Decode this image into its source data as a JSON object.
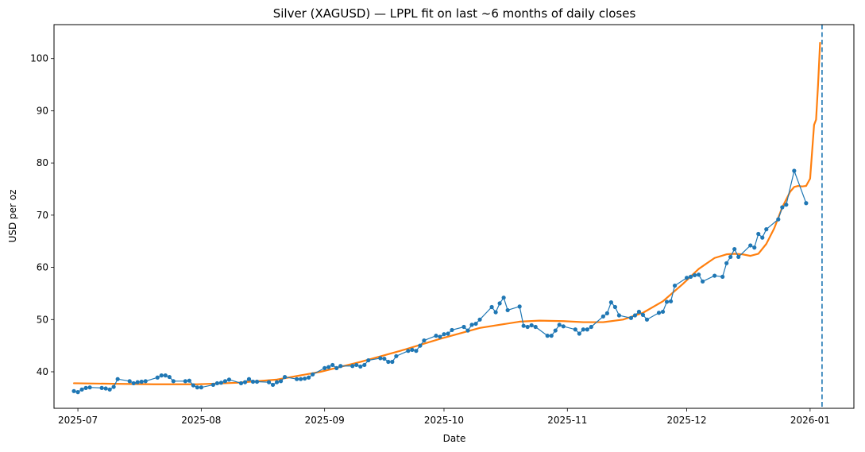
{
  "chart_data": {
    "type": "line",
    "title": "Silver (XAGUSD) — LPPL fit on last ~6 months of daily closes",
    "xlabel": "Date",
    "ylabel": "USD per oz",
    "xlim": [
      "2025-06-25",
      "2026-01-12"
    ],
    "ylim": [
      33,
      106.5
    ],
    "x_ticks": [
      "2025-07-01",
      "2025-08-01",
      "2025-09-01",
      "2025-10-01",
      "2025-11-01",
      "2025-12-01",
      "2026-01-01"
    ],
    "x_tick_labels": [
      "2025-07",
      "2025-08",
      "2025-09",
      "2025-10",
      "2025-11",
      "2025-12",
      "2026-01"
    ],
    "y_ticks": [
      40,
      50,
      60,
      70,
      80,
      90,
      100
    ],
    "y_tick_labels": [
      "40",
      "50",
      "60",
      "70",
      "80",
      "90",
      "100"
    ],
    "grid": false,
    "legend": "none",
    "critical_time": "2026-01-04",
    "series": [
      {
        "role": "daily closes",
        "style": "line-with-markers",
        "color": "#1f77b4",
        "points": [
          [
            "2025-06-30",
            36.3
          ],
          [
            "2025-07-01",
            36.1
          ],
          [
            "2025-07-02",
            36.6
          ],
          [
            "2025-07-03",
            36.9
          ],
          [
            "2025-07-04",
            37.0
          ],
          [
            "2025-07-07",
            36.9
          ],
          [
            "2025-07-08",
            36.8
          ],
          [
            "2025-07-09",
            36.6
          ],
          [
            "2025-07-10",
            37.1
          ],
          [
            "2025-07-11",
            38.6
          ],
          [
            "2025-07-14",
            38.2
          ],
          [
            "2025-07-15",
            37.8
          ],
          [
            "2025-07-16",
            38.0
          ],
          [
            "2025-07-17",
            38.1
          ],
          [
            "2025-07-18",
            38.2
          ],
          [
            "2025-07-21",
            38.9
          ],
          [
            "2025-07-22",
            39.3
          ],
          [
            "2025-07-23",
            39.3
          ],
          [
            "2025-07-24",
            39.0
          ],
          [
            "2025-07-25",
            38.2
          ],
          [
            "2025-07-28",
            38.2
          ],
          [
            "2025-07-29",
            38.3
          ],
          [
            "2025-07-30",
            37.4
          ],
          [
            "2025-07-31",
            37.0
          ],
          [
            "2025-08-01",
            37.0
          ],
          [
            "2025-08-04",
            37.5
          ],
          [
            "2025-08-05",
            37.8
          ],
          [
            "2025-08-06",
            37.9
          ],
          [
            "2025-08-07",
            38.2
          ],
          [
            "2025-08-08",
            38.5
          ],
          [
            "2025-08-11",
            37.8
          ],
          [
            "2025-08-12",
            38.0
          ],
          [
            "2025-08-13",
            38.6
          ],
          [
            "2025-08-14",
            38.1
          ],
          [
            "2025-08-15",
            38.1
          ],
          [
            "2025-08-18",
            38.0
          ],
          [
            "2025-08-19",
            37.5
          ],
          [
            "2025-08-20",
            38.0
          ],
          [
            "2025-08-21",
            38.2
          ],
          [
            "2025-08-22",
            39.0
          ],
          [
            "2025-08-25",
            38.6
          ],
          [
            "2025-08-26",
            38.6
          ],
          [
            "2025-08-27",
            38.7
          ],
          [
            "2025-08-28",
            38.9
          ],
          [
            "2025-08-29",
            39.5
          ],
          [
            "2025-09-01",
            40.7
          ],
          [
            "2025-09-02",
            40.9
          ],
          [
            "2025-09-03",
            41.3
          ],
          [
            "2025-09-04",
            40.7
          ],
          [
            "2025-09-05",
            41.1
          ],
          [
            "2025-09-08",
            41.1
          ],
          [
            "2025-09-09",
            41.3
          ],
          [
            "2025-09-10",
            41.0
          ],
          [
            "2025-09-11",
            41.3
          ],
          [
            "2025-09-12",
            42.2
          ],
          [
            "2025-09-15",
            42.6
          ],
          [
            "2025-09-16",
            42.5
          ],
          [
            "2025-09-17",
            41.9
          ],
          [
            "2025-09-18",
            41.9
          ],
          [
            "2025-09-19",
            43.0
          ],
          [
            "2025-09-22",
            44.0
          ],
          [
            "2025-09-23",
            44.2
          ],
          [
            "2025-09-24",
            44.0
          ],
          [
            "2025-09-25",
            45.0
          ],
          [
            "2025-09-26",
            46.0
          ],
          [
            "2025-09-29",
            46.9
          ],
          [
            "2025-09-30",
            46.7
          ],
          [
            "2025-10-01",
            47.2
          ],
          [
            "2025-10-02",
            47.3
          ],
          [
            "2025-10-03",
            48.0
          ],
          [
            "2025-10-06",
            48.6
          ],
          [
            "2025-10-07",
            47.9
          ],
          [
            "2025-10-08",
            49.0
          ],
          [
            "2025-10-09",
            49.2
          ],
          [
            "2025-10-10",
            50.0
          ],
          [
            "2025-10-13",
            52.4
          ],
          [
            "2025-10-14",
            51.4
          ],
          [
            "2025-10-15",
            53.1
          ],
          [
            "2025-10-16",
            54.2
          ],
          [
            "2025-10-17",
            51.8
          ],
          [
            "2025-10-20",
            52.5
          ],
          [
            "2025-10-21",
            48.8
          ],
          [
            "2025-10-22",
            48.6
          ],
          [
            "2025-10-23",
            48.9
          ],
          [
            "2025-10-24",
            48.6
          ],
          [
            "2025-10-27",
            46.9
          ],
          [
            "2025-10-28",
            46.9
          ],
          [
            "2025-10-29",
            47.9
          ],
          [
            "2025-10-30",
            49.0
          ],
          [
            "2025-10-31",
            48.7
          ],
          [
            "2025-11-03",
            48.1
          ],
          [
            "2025-11-04",
            47.3
          ],
          [
            "2025-11-05",
            48.1
          ],
          [
            "2025-11-06",
            48.1
          ],
          [
            "2025-11-07",
            48.6
          ],
          [
            "2025-11-10",
            50.6
          ],
          [
            "2025-11-11",
            51.2
          ],
          [
            "2025-11-12",
            53.3
          ],
          [
            "2025-11-13",
            52.4
          ],
          [
            "2025-11-14",
            50.8
          ],
          [
            "2025-11-17",
            50.3
          ],
          [
            "2025-11-18",
            50.8
          ],
          [
            "2025-11-19",
            51.5
          ],
          [
            "2025-11-20",
            50.9
          ],
          [
            "2025-11-21",
            50.0
          ],
          [
            "2025-11-24",
            51.3
          ],
          [
            "2025-11-25",
            51.5
          ],
          [
            "2025-11-26",
            53.4
          ],
          [
            "2025-11-27",
            53.5
          ],
          [
            "2025-11-28",
            56.5
          ],
          [
            "2025-12-01",
            58.0
          ],
          [
            "2025-12-02",
            58.2
          ],
          [
            "2025-12-03",
            58.5
          ],
          [
            "2025-12-04",
            58.6
          ],
          [
            "2025-12-05",
            57.3
          ],
          [
            "2025-12-08",
            58.4
          ],
          [
            "2025-12-10",
            58.2
          ],
          [
            "2025-12-11",
            60.8
          ],
          [
            "2025-12-12",
            62.0
          ],
          [
            "2025-12-13",
            63.5
          ],
          [
            "2025-12-14",
            62.0
          ],
          [
            "2025-12-17",
            64.2
          ],
          [
            "2025-12-18",
            63.8
          ],
          [
            "2025-12-19",
            66.4
          ],
          [
            "2025-12-20",
            65.7
          ],
          [
            "2025-12-21",
            67.3
          ],
          [
            "2025-12-24",
            69.2
          ],
          [
            "2025-12-25",
            71.5
          ],
          [
            "2025-12-26",
            72.0
          ],
          [
            "2025-12-28",
            78.5
          ],
          [
            "2025-12-31",
            72.3
          ]
        ]
      },
      {
        "role": "LPPL fit",
        "style": "line",
        "color": "#ff7f0e",
        "points": [
          [
            "2025-06-30",
            37.8
          ],
          [
            "2025-07-10",
            37.7
          ],
          [
            "2025-07-20",
            37.6
          ],
          [
            "2025-07-31",
            37.6
          ],
          [
            "2025-08-10",
            37.9
          ],
          [
            "2025-08-20",
            38.5
          ],
          [
            "2025-08-31",
            40.0
          ],
          [
            "2025-09-10",
            41.9
          ],
          [
            "2025-09-20",
            44.0
          ],
          [
            "2025-09-30",
            46.3
          ],
          [
            "2025-10-10",
            48.4
          ],
          [
            "2025-10-20",
            49.6
          ],
          [
            "2025-10-25",
            49.8
          ],
          [
            "2025-10-31",
            49.7
          ],
          [
            "2025-11-05",
            49.5
          ],
          [
            "2025-11-10",
            49.5
          ],
          [
            "2025-11-15",
            50.0
          ],
          [
            "2025-11-20",
            51.3
          ],
          [
            "2025-11-25",
            53.5
          ],
          [
            "2025-11-30",
            56.8
          ],
          [
            "2025-12-04",
            59.7
          ],
          [
            "2025-12-08",
            61.8
          ],
          [
            "2025-12-11",
            62.5
          ],
          [
            "2025-12-13",
            62.6
          ],
          [
            "2025-12-15",
            62.5
          ],
          [
            "2025-12-17",
            62.2
          ],
          [
            "2025-12-19",
            62.6
          ],
          [
            "2025-12-21",
            64.5
          ],
          [
            "2025-12-23",
            67.5
          ],
          [
            "2025-12-25",
            71.5
          ],
          [
            "2025-12-27",
            74.5
          ],
          [
            "2025-12-28",
            75.4
          ],
          [
            "2025-12-29",
            75.6
          ],
          [
            "2025-12-30",
            75.5
          ],
          [
            "2025-12-31",
            75.6
          ],
          [
            "2026-01-01",
            77.0
          ],
          [
            "2026-01-02",
            87.3
          ],
          [
            "2026-01-02.5",
            88.3
          ],
          [
            "2026-01-03",
            95.0
          ],
          [
            "2026-01-03.5",
            103.0
          ]
        ]
      }
    ]
  }
}
